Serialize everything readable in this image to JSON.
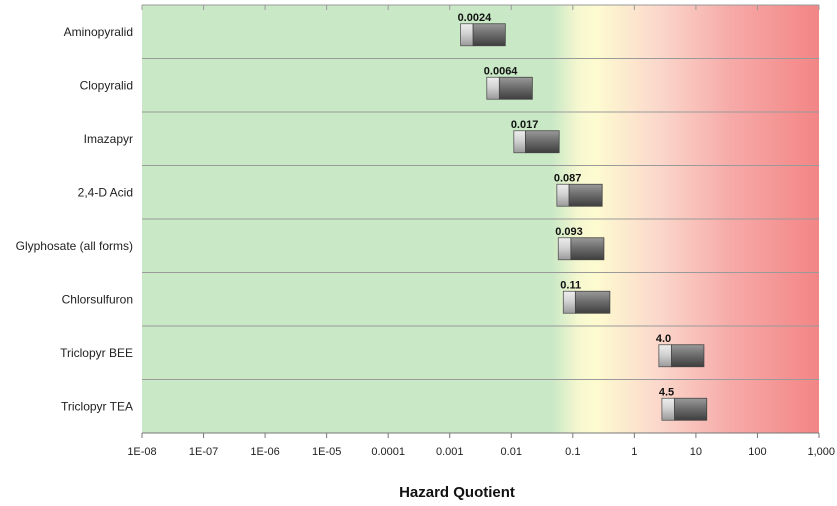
{
  "chart_data": {
    "type": "bar",
    "xlabel": "Hazard Quotient",
    "x_scale": "log",
    "xlim": [
      1e-08,
      1000
    ],
    "tick_labels": [
      "1E-08",
      "1E-07",
      "1E-06",
      "1E-05",
      "0.0001",
      "0.001",
      "0.01",
      "0.1",
      "1",
      "10",
      "100",
      "1,000"
    ],
    "categories": [
      "Aminopyralid",
      "Clopyralid",
      "Imazapyr",
      "2,4-D Acid",
      "Glyphosate (all forms)",
      "Chlorsulfuron",
      "Triclopyr BEE",
      "Triclopyr TEA"
    ],
    "value_labels": [
      "0.0024",
      "0.0064",
      "0.017",
      "0.087",
      "0.093",
      "0.11",
      "4.0",
      "4.5"
    ],
    "values": [
      0.0024,
      0.0064,
      0.017,
      0.087,
      0.093,
      0.11,
      4.0,
      4.5
    ],
    "ranges": [
      [
        0.0015,
        0.008
      ],
      [
        0.004,
        0.022
      ],
      [
        0.011,
        0.06
      ],
      [
        0.055,
        0.3
      ],
      [
        0.058,
        0.32
      ],
      [
        0.07,
        0.4
      ],
      [
        2.5,
        13.5
      ],
      [
        2.8,
        15
      ]
    ],
    "background_zones": {
      "green": "#c9e8c6",
      "yellow": "#fdfbd0",
      "red": "#f38585"
    },
    "bar_colors": {
      "light": "#d2d2d2",
      "dark": "#6e6e6e"
    },
    "grid": true
  }
}
